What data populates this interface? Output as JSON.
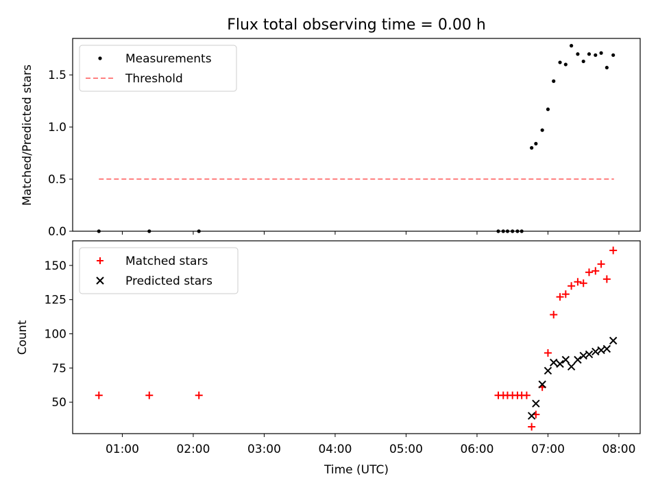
{
  "chart_data": [
    {
      "type": "scatter",
      "title": "Flux total observing time = 0.00 h",
      "xlabel": "",
      "ylabel": "Matched/Predicted stars",
      "xlim": [
        0.3,
        8.3
      ],
      "ylim": [
        0.0,
        1.85
      ],
      "yticks": [
        0.0,
        0.5,
        1.0,
        1.5
      ],
      "ytick_labels": [
        "0.0",
        "0.5",
        "1.0",
        "1.5"
      ],
      "xticks": [
        1,
        2,
        3,
        4,
        5,
        6,
        7,
        8
      ],
      "legend_position": "top-left",
      "legend": [
        {
          "label": "Measurements",
          "marker": "dot",
          "color": "#000000"
        },
        {
          "label": "Threshold",
          "marker": "dashed-line",
          "color": "#ff8080"
        }
      ],
      "threshold": {
        "value": 0.5,
        "x_start": 0.67,
        "x_end": 7.93
      },
      "series": [
        {
          "name": "Measurements",
          "color": "#000000",
          "x": [
            0.67,
            1.38,
            2.08,
            6.3,
            6.37,
            6.43,
            6.5,
            6.57,
            6.63,
            6.77,
            6.83,
            6.92,
            7.0,
            7.08,
            7.17,
            7.25,
            7.33,
            7.42,
            7.5,
            7.58,
            7.67,
            7.75,
            7.83,
            7.92
          ],
          "y": [
            0.0,
            0.0,
            0.0,
            0.0,
            0.0,
            0.0,
            0.0,
            0.0,
            0.0,
            0.8,
            0.84,
            0.97,
            1.17,
            1.44,
            1.62,
            1.6,
            1.78,
            1.7,
            1.63,
            1.7,
            1.69,
            1.71,
            1.57,
            1.69
          ]
        }
      ]
    },
    {
      "type": "scatter",
      "title": "",
      "xlabel": "Time (UTC)",
      "ylabel": "Count",
      "xlim": [
        0.3,
        8.3
      ],
      "ylim": [
        27,
        168
      ],
      "yticks": [
        50,
        75,
        100,
        125,
        150
      ],
      "ytick_labels": [
        "50",
        "75",
        "100",
        "125",
        "150"
      ],
      "xticks": [
        1,
        2,
        3,
        4,
        5,
        6,
        7,
        8
      ],
      "xtick_labels": [
        "01:00",
        "02:00",
        "03:00",
        "04:00",
        "05:00",
        "06:00",
        "07:00",
        "08:00"
      ],
      "legend_position": "top-left",
      "legend": [
        {
          "label": "Matched stars",
          "marker": "plus",
          "color": "#ff0000"
        },
        {
          "label": "Predicted stars",
          "marker": "x",
          "color": "#000000"
        }
      ],
      "series": [
        {
          "name": "Matched stars",
          "marker": "plus",
          "color": "#ff0000",
          "x": [
            0.67,
            1.38,
            2.08,
            6.3,
            6.37,
            6.43,
            6.5,
            6.57,
            6.63,
            6.7,
            6.77,
            6.83,
            6.92,
            7.0,
            7.08,
            7.17,
            7.25,
            7.33,
            7.42,
            7.5,
            7.58,
            7.67,
            7.75,
            7.83,
            7.92
          ],
          "y": [
            55,
            55,
            55,
            55,
            55,
            55,
            55,
            55,
            55,
            55,
            32,
            41,
            61,
            86,
            114,
            127,
            129,
            135,
            138,
            137,
            145,
            146,
            151,
            140,
            161
          ]
        },
        {
          "name": "Predicted stars",
          "marker": "x",
          "color": "#000000",
          "x": [
            6.77,
            6.83,
            6.92,
            7.0,
            7.08,
            7.17,
            7.25,
            7.33,
            7.42,
            7.5,
            7.58,
            7.67,
            7.75,
            7.83,
            7.92
          ],
          "y": [
            40,
            49,
            63,
            73,
            79,
            78,
            81,
            76,
            81,
            84,
            85,
            87,
            88,
            89,
            95
          ]
        }
      ]
    }
  ]
}
